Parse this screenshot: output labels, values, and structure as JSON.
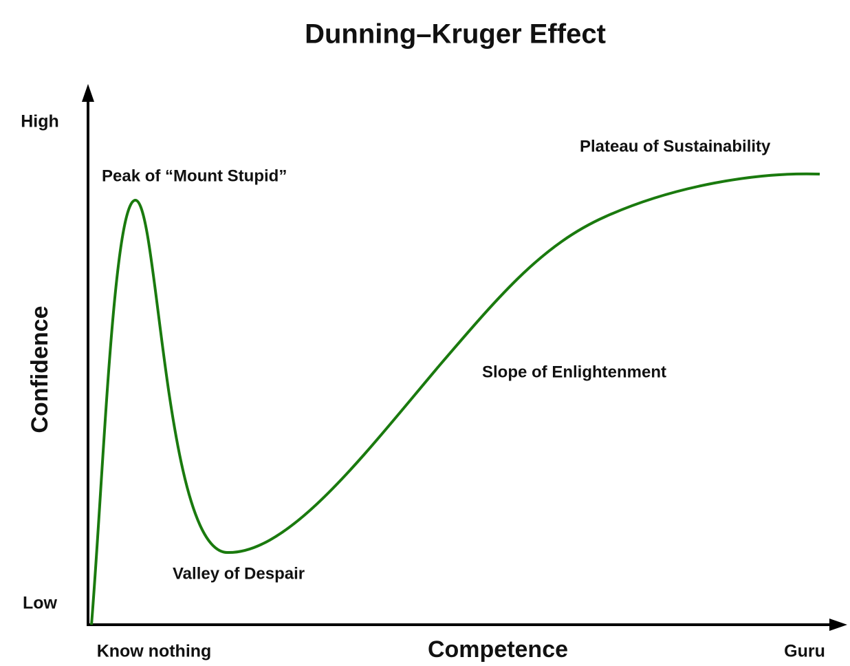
{
  "title": "Dunning–Kruger Effect",
  "axes": {
    "y_label": "Confidence",
    "x_label": "Competence",
    "y_high": "High",
    "y_low": "Low",
    "x_start": "Know nothing",
    "x_end": "Guru"
  },
  "annotations": [
    "Peak of “Mount Stupid”",
    "Valley of Despair",
    "Slope of Enlightenment",
    "Plateau of Sustainability"
  ]
}
